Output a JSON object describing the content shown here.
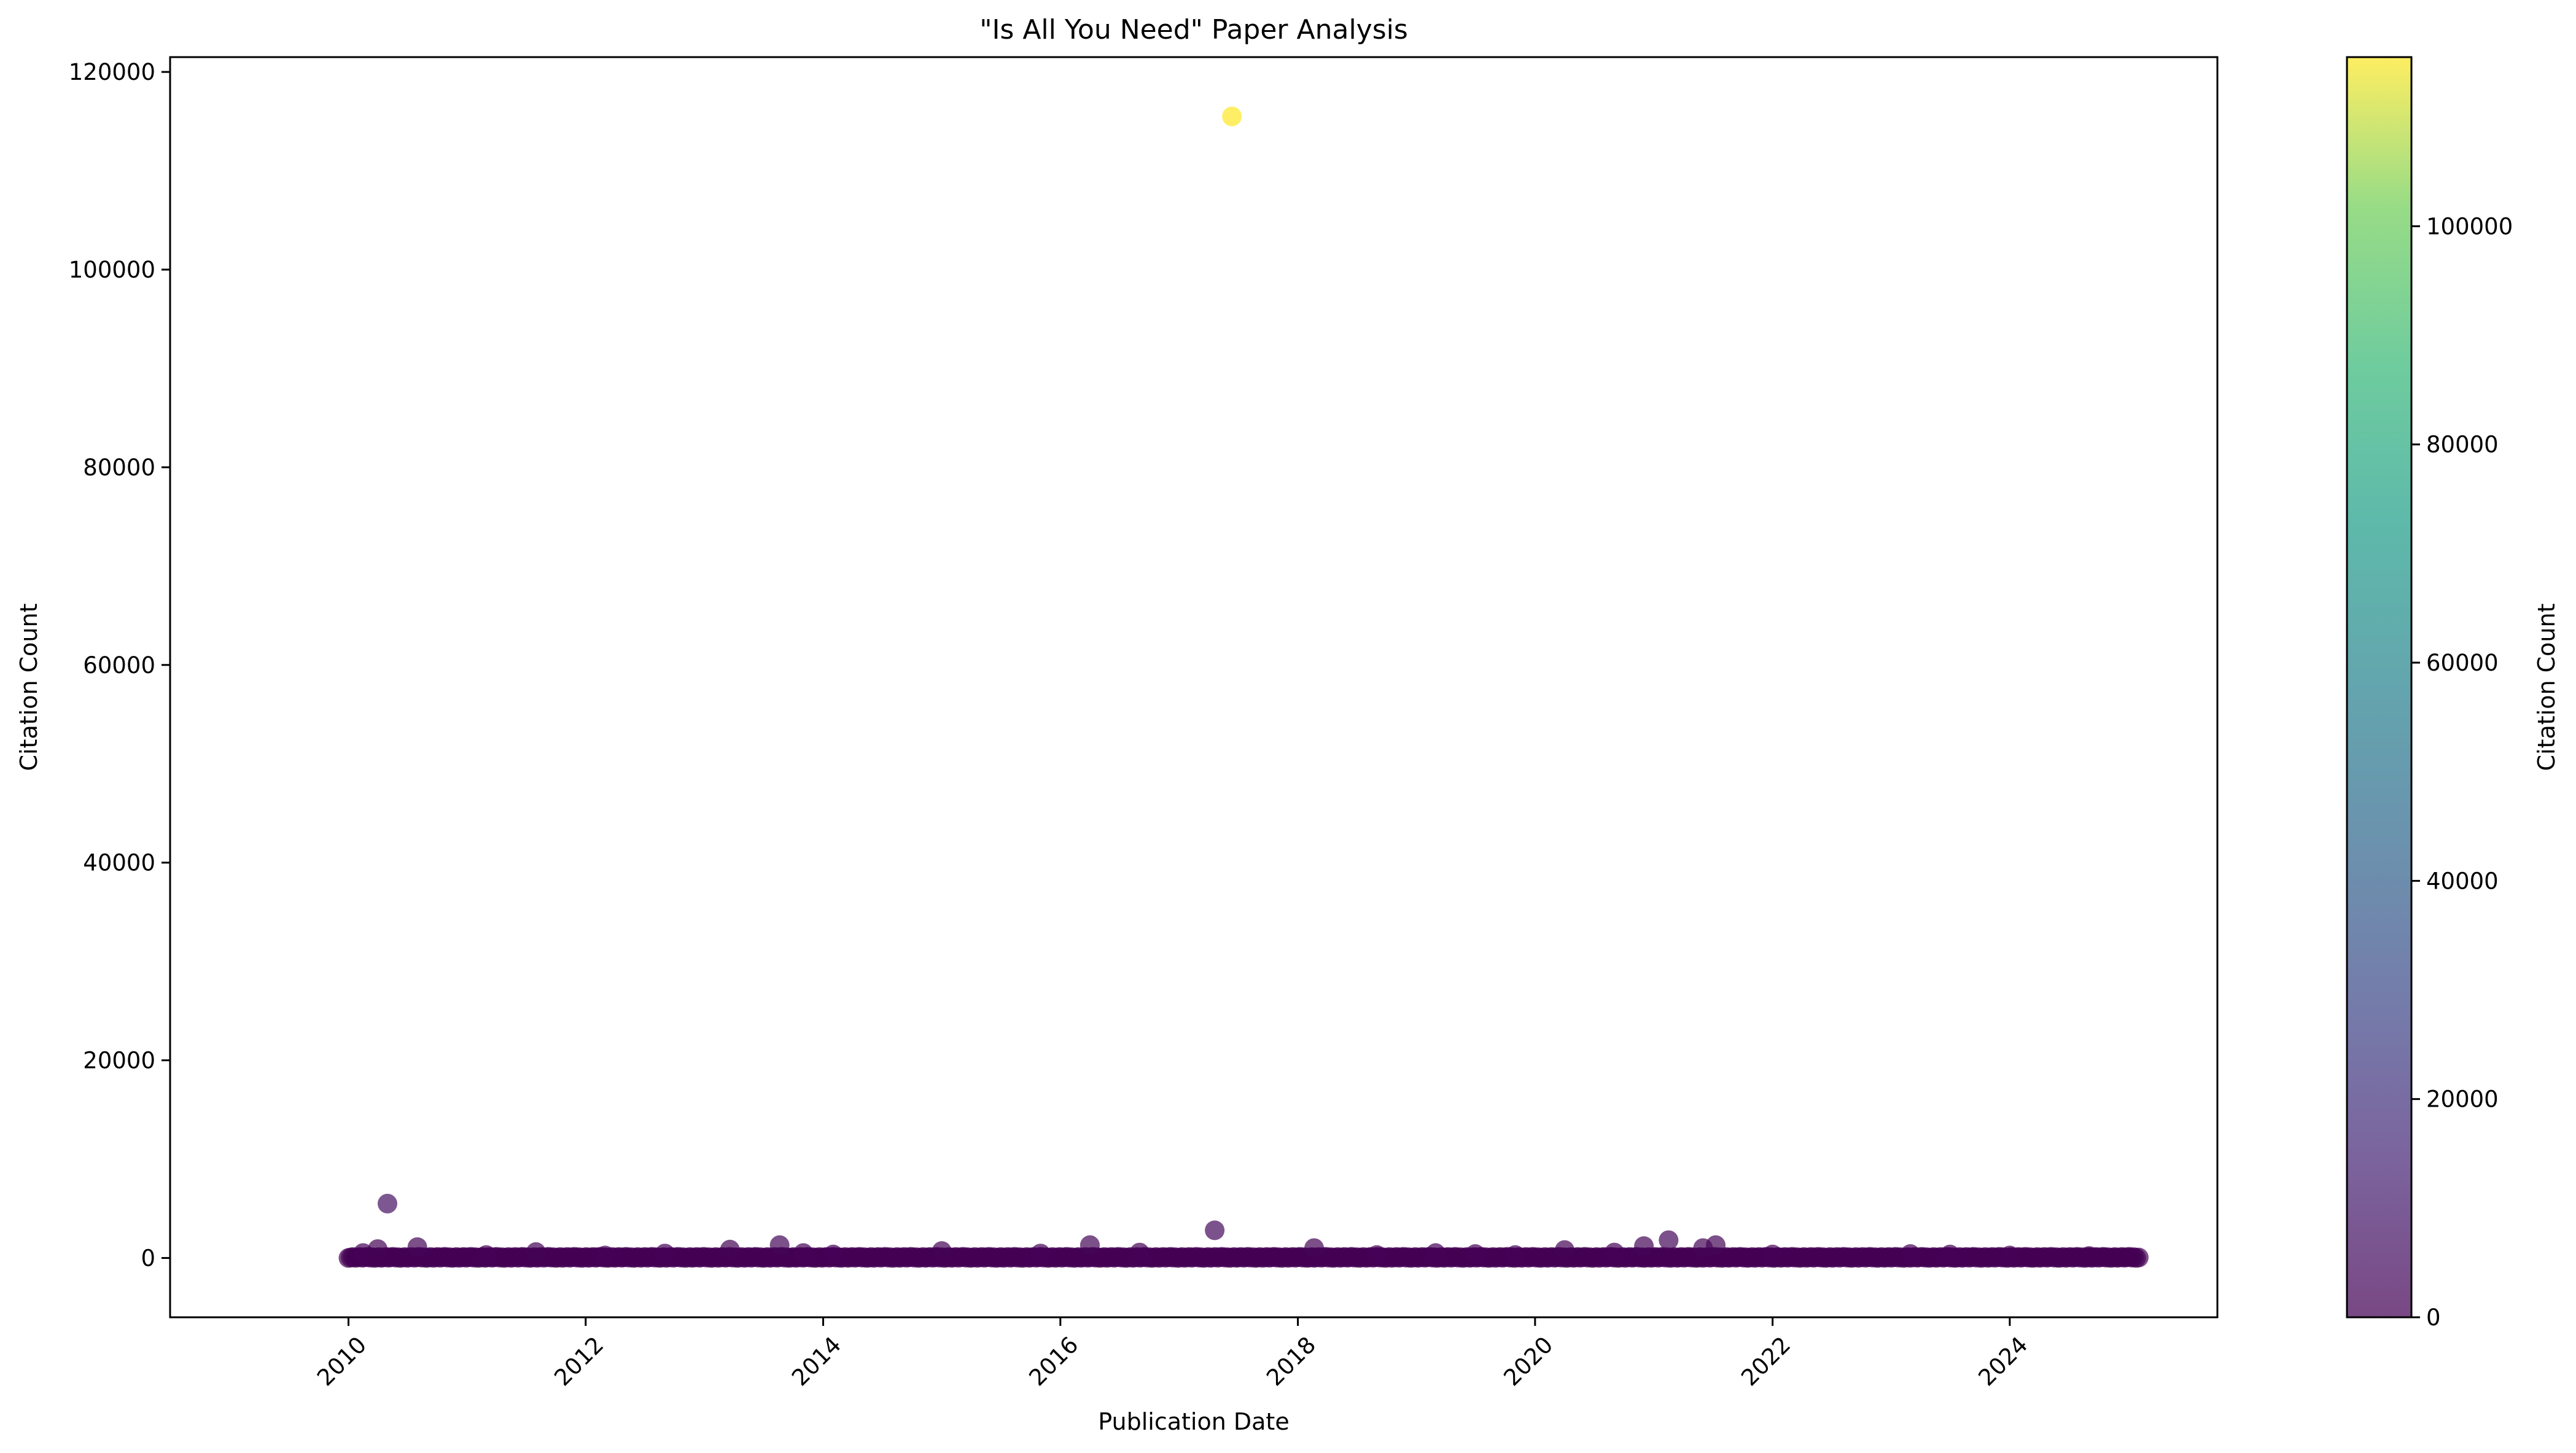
{
  "chart_data": {
    "type": "scatter",
    "title": "\"Is All You Need\" Paper Analysis",
    "xlabel": "Publication Date",
    "ylabel": "Citation Count",
    "x_ticks": [
      "2010",
      "2012",
      "2014",
      "2016",
      "2018",
      "2020",
      "2022",
      "2024"
    ],
    "y_ticks": [
      "0",
      "20000",
      "40000",
      "60000",
      "80000",
      "100000",
      "120000"
    ],
    "xlim": [
      "2008-07-01",
      "2025-10-01"
    ],
    "ylim": [
      -6000,
      121500
    ],
    "grid": false,
    "colormap": "viridis",
    "colorbar": {
      "label": "Citation Count",
      "range": [
        0,
        115500
      ],
      "ticks": [
        "0",
        "20000",
        "40000",
        "60000",
        "80000",
        "100000"
      ]
    },
    "point_alpha": 0.7,
    "dense_points": {
      "note": "hundreds of papers along the baseline with near-zero citation counts, spanning the full date range",
      "x_start": "2010-01-01",
      "x_end": "2025-02-01",
      "y": 0
    },
    "points": [
      {
        "x": "2017-06-12",
        "y": 115500
      },
      {
        "x": "2010-05-01",
        "y": 5500
      },
      {
        "x": "2017-04-20",
        "y": 2800
      },
      {
        "x": "2021-02-15",
        "y": 1800
      },
      {
        "x": "2013-08-20",
        "y": 1300
      },
      {
        "x": "2016-04-01",
        "y": 1300
      },
      {
        "x": "2021-07-10",
        "y": 1300
      },
      {
        "x": "2020-12-01",
        "y": 1200
      },
      {
        "x": "2010-08-01",
        "y": 1100
      },
      {
        "x": "2021-06-01",
        "y": 1000
      },
      {
        "x": "2018-02-20",
        "y": 1000
      },
      {
        "x": "2010-04-01",
        "y": 900
      },
      {
        "x": "2013-03-20",
        "y": 850
      },
      {
        "x": "2020-04-01",
        "y": 800
      },
      {
        "x": "2015-01-01",
        "y": 700
      },
      {
        "x": "2011-08-01",
        "y": 600
      },
      {
        "x": "2016-09-01",
        "y": 550
      },
      {
        "x": "2020-09-01",
        "y": 550
      },
      {
        "x": "2013-11-01",
        "y": 500
      },
      {
        "x": "2010-02-15",
        "y": 500
      },
      {
        "x": "2019-03-01",
        "y": 500
      },
      {
        "x": "2012-09-01",
        "y": 450
      },
      {
        "x": "2015-11-01",
        "y": 450
      },
      {
        "x": "2019-07-01",
        "y": 400
      },
      {
        "x": "2023-03-01",
        "y": 400
      },
      {
        "x": "2014-02-01",
        "y": 350
      },
      {
        "x": "2022-01-01",
        "y": 350
      },
      {
        "x": "2023-07-01",
        "y": 350
      },
      {
        "x": "2018-09-01",
        "y": 300
      },
      {
        "x": "2011-03-01",
        "y": 300
      },
      {
        "x": "2019-11-01",
        "y": 300
      },
      {
        "x": "2024-01-01",
        "y": 250
      },
      {
        "x": "2012-03-01",
        "y": 250
      },
      {
        "x": "2024-09-01",
        "y": 200
      }
    ]
  }
}
